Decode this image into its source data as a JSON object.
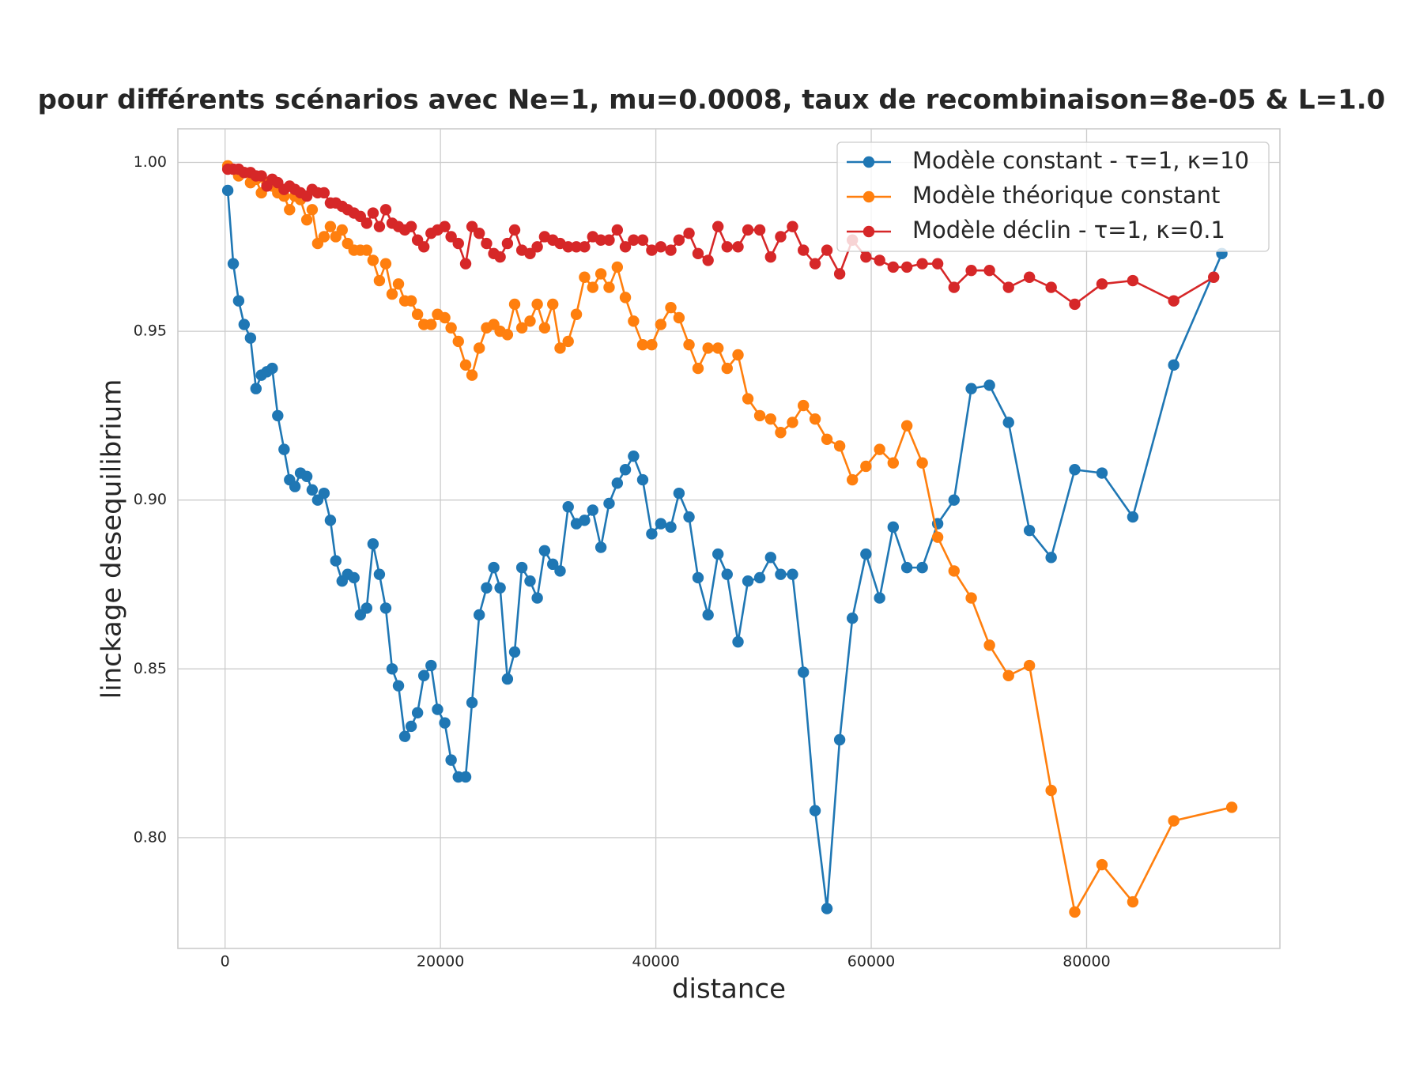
{
  "chart_data": {
    "type": "line",
    "title": "pour différents scénarios avec Ne=1, mu=0.0008, taux de recombinaison=8e-05 & L=1.0",
    "x_label": "distance",
    "y_label": "linckage desequilibrium",
    "xlim": [
      -4383,
      97950
    ],
    "ylim": [
      0.7672,
      1.00995
    ],
    "xticks": [
      0,
      20000,
      40000,
      60000,
      80000
    ],
    "yticks": [
      {
        "value": 0.8,
        "label": "0.80"
      },
      {
        "value": 0.85,
        "label": "0.85"
      },
      {
        "value": 0.9,
        "label": "0.90"
      },
      {
        "value": 0.95,
        "label": "0.95"
      },
      {
        "value": 1,
        "label": "1.00"
      }
    ],
    "grid": true,
    "legend": "upper right",
    "series": [
      {
        "name": "Modèle constant - τ=1, κ=10",
        "color": "#1f77b4",
        "x": [
          250,
          760,
          1260,
          1770,
          2360,
          2870,
          3370,
          3880,
          4380,
          4890,
          5480,
          5990,
          6490,
          7000,
          7590,
          8090,
          8600,
          9190,
          9780,
          10280,
          10870,
          11380,
          11970,
          12560,
          13150,
          13740,
          14330,
          14920,
          15510,
          16100,
          16690,
          17280,
          17870,
          18460,
          19130,
          19730,
          20400,
          20990,
          21660,
          22340,
          22930,
          23600,
          24280,
          24950,
          25540,
          26220,
          26890,
          27560,
          28320,
          28990,
          29670,
          30430,
          31110,
          31860,
          32620,
          33380,
          34140,
          34900,
          35660,
          36420,
          37170,
          37930,
          38780,
          39620,
          40460,
          41390,
          42150,
          43080,
          43920,
          44850,
          45770,
          46620,
          47630,
          48550,
          49650,
          50660,
          51590,
          52690,
          53700,
          54790,
          55890,
          57070,
          58250,
          59510,
          60780,
          62040,
          63310,
          64740,
          66170,
          67690,
          69290,
          70980,
          72750,
          74690,
          76710,
          78900,
          81430,
          84290,
          88090,
          92560
        ],
        "values": [
          0.9917,
          0.97,
          0.959,
          0.952,
          0.948,
          0.933,
          0.937,
          0.938,
          0.939,
          0.925,
          0.915,
          0.906,
          0.904,
          0.908,
          0.907,
          0.903,
          0.9,
          0.902,
          0.894,
          0.882,
          0.876,
          0.878,
          0.877,
          0.866,
          0.868,
          0.887,
          0.878,
          0.868,
          0.85,
          0.845,
          0.83,
          0.833,
          0.837,
          0.848,
          0.851,
          0.838,
          0.834,
          0.823,
          0.818,
          0.818,
          0.84,
          0.866,
          0.874,
          0.88,
          0.874,
          0.847,
          0.855,
          0.88,
          0.876,
          0.871,
          0.885,
          0.881,
          0.879,
          0.898,
          0.893,
          0.894,
          0.897,
          0.886,
          0.899,
          0.905,
          0.909,
          0.913,
          0.906,
          0.89,
          0.893,
          0.892,
          0.902,
          0.895,
          0.877,
          0.866,
          0.884,
          0.878,
          0.858,
          0.876,
          0.877,
          0.883,
          0.878,
          0.878,
          0.849,
          0.808,
          0.779,
          0.829,
          0.865,
          0.884,
          0.871,
          0.892,
          0.88,
          0.88,
          0.893,
          0.9,
          0.933,
          0.934,
          0.923,
          0.891,
          0.883,
          0.909,
          0.908,
          0.895,
          0.94,
          0.973
        ]
      },
      {
        "name": "Modèle théorique constant",
        "color": "#ff7f0e",
        "x": [
          250,
          760,
          1260,
          1770,
          2360,
          2870,
          3370,
          3880,
          4380,
          4890,
          5480,
          5990,
          6490,
          7000,
          7590,
          8090,
          8600,
          9190,
          9780,
          10280,
          10870,
          11380,
          11970,
          12560,
          13150,
          13740,
          14330,
          14920,
          15510,
          16100,
          16690,
          17280,
          17870,
          18460,
          19130,
          19730,
          20400,
          20990,
          21660,
          22340,
          22930,
          23600,
          24280,
          24950,
          25540,
          26220,
          26890,
          27560,
          28320,
          28990,
          29670,
          30430,
          31110,
          31860,
          32620,
          33380,
          34140,
          34900,
          35660,
          36420,
          37170,
          37930,
          38780,
          39620,
          40460,
          41390,
          42150,
          43080,
          43920,
          44850,
          45770,
          46620,
          47630,
          48550,
          49650,
          50660,
          51590,
          52690,
          53700,
          54790,
          55890,
          57070,
          58250,
          59510,
          60780,
          62040,
          63310,
          64740,
          66170,
          67690,
          69290,
          70980,
          72750,
          74690,
          76710,
          78900,
          81430,
          84290,
          88090,
          93480
        ],
        "values": [
          0.999,
          0.998,
          0.996,
          0.997,
          0.994,
          0.995,
          0.991,
          0.994,
          0.993,
          0.991,
          0.99,
          0.986,
          0.99,
          0.989,
          0.983,
          0.986,
          0.976,
          0.978,
          0.981,
          0.978,
          0.98,
          0.976,
          0.974,
          0.974,
          0.974,
          0.971,
          0.965,
          0.97,
          0.961,
          0.964,
          0.959,
          0.959,
          0.955,
          0.952,
          0.952,
          0.955,
          0.954,
          0.951,
          0.947,
          0.94,
          0.937,
          0.945,
          0.951,
          0.952,
          0.95,
          0.949,
          0.958,
          0.951,
          0.953,
          0.958,
          0.951,
          0.958,
          0.945,
          0.947,
          0.955,
          0.966,
          0.963,
          0.967,
          0.963,
          0.969,
          0.96,
          0.953,
          0.946,
          0.946,
          0.952,
          0.957,
          0.954,
          0.946,
          0.939,
          0.945,
          0.945,
          0.939,
          0.943,
          0.93,
          0.925,
          0.924,
          0.92,
          0.923,
          0.928,
          0.924,
          0.918,
          0.916,
          0.906,
          0.91,
          0.915,
          0.911,
          0.922,
          0.911,
          0.889,
          0.879,
          0.871,
          0.857,
          0.848,
          0.851,
          0.814,
          0.778,
          0.792,
          0.781,
          0.805,
          0.809
        ]
      },
      {
        "name": "Modèle déclin - τ=1, κ=0.1",
        "color": "#d62728",
        "x": [
          250,
          760,
          1260,
          1770,
          2360,
          2870,
          3370,
          3880,
          4380,
          4890,
          5480,
          5990,
          6490,
          7000,
          7590,
          8090,
          8600,
          9190,
          9780,
          10280,
          10870,
          11380,
          11970,
          12560,
          13150,
          13740,
          14330,
          14920,
          15510,
          16100,
          16690,
          17280,
          17870,
          18460,
          19130,
          19730,
          20400,
          20990,
          21660,
          22340,
          22930,
          23600,
          24280,
          24950,
          25540,
          26220,
          26890,
          27560,
          28320,
          28990,
          29670,
          30430,
          31110,
          31860,
          32620,
          33380,
          34140,
          34900,
          35660,
          36420,
          37170,
          37930,
          38780,
          39620,
          40460,
          41390,
          42150,
          43080,
          43920,
          44850,
          45770,
          46620,
          47630,
          48550,
          49650,
          50660,
          51590,
          52690,
          53700,
          54790,
          55890,
          57070,
          58250,
          59510,
          60780,
          62040,
          63310,
          64740,
          66170,
          67690,
          69290,
          70980,
          72750,
          74690,
          76710,
          78900,
          81430,
          84290,
          88090,
          91800
        ],
        "values": [
          0.998,
          0.998,
          0.998,
          0.997,
          0.997,
          0.996,
          0.996,
          0.993,
          0.995,
          0.994,
          0.992,
          0.993,
          0.992,
          0.991,
          0.99,
          0.992,
          0.991,
          0.991,
          0.988,
          0.988,
          0.987,
          0.986,
          0.985,
          0.984,
          0.982,
          0.985,
          0.981,
          0.986,
          0.982,
          0.981,
          0.98,
          0.981,
          0.977,
          0.975,
          0.979,
          0.98,
          0.981,
          0.978,
          0.976,
          0.97,
          0.981,
          0.979,
          0.976,
          0.973,
          0.972,
          0.976,
          0.98,
          0.974,
          0.973,
          0.975,
          0.978,
          0.977,
          0.976,
          0.975,
          0.975,
          0.975,
          0.978,
          0.977,
          0.977,
          0.98,
          0.975,
          0.977,
          0.977,
          0.974,
          0.975,
          0.974,
          0.977,
          0.979,
          0.973,
          0.971,
          0.981,
          0.975,
          0.975,
          0.98,
          0.98,
          0.972,
          0.978,
          0.981,
          0.974,
          0.97,
          0.974,
          0.967,
          0.977,
          0.972,
          0.971,
          0.969,
          0.969,
          0.97,
          0.97,
          0.963,
          0.968,
          0.968,
          0.963,
          0.966,
          0.963,
          0.958,
          0.964,
          0.965,
          0.959,
          0.966
        ]
      }
    ]
  }
}
